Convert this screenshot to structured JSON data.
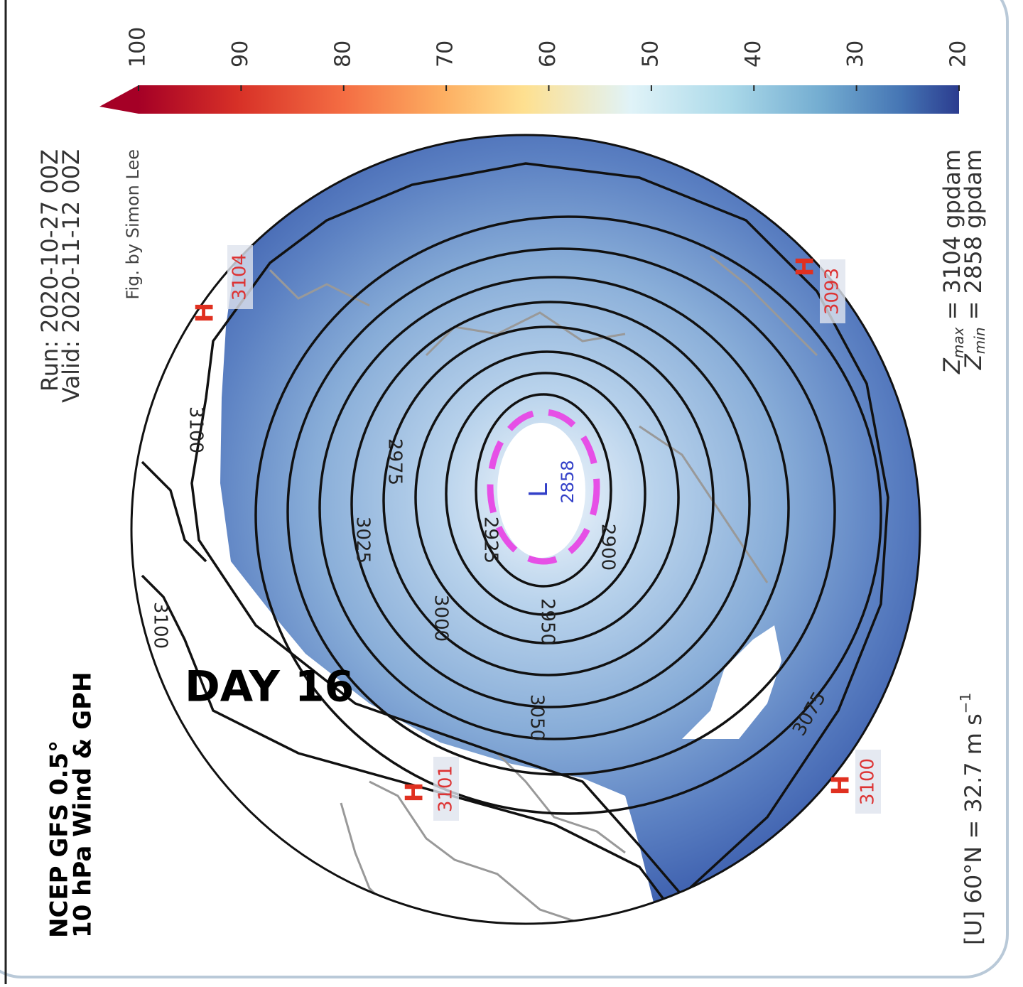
{
  "title": [
    "NCEP GFS 0.5°",
    "10 hPa Wind & GPH"
  ],
  "run": "Run: 2020-10-27 00Z",
  "valid": "Valid: 2020-11-12 00Z",
  "credit": "Fig. by Simon Lee",
  "colorbar": {
    "lim": [
      20,
      100
    ],
    "ticks": [
      100,
      90,
      80,
      70,
      60,
      50,
      40,
      30,
      20
    ]
  },
  "stats": [
    {
      "symbol": "Z",
      "sub": "max",
      "text": " = 3104 gpdam"
    },
    {
      "symbol": "Z",
      "sub": "min",
      "text": " = 2858 gpdam"
    }
  ],
  "zonal_wind": {
    "text": "[U] 60°N = 32.7 m s",
    "sup": "−1"
  },
  "day_label": "DAY 16",
  "highs": [
    {
      "marker": "H",
      "value": "3104"
    },
    {
      "marker": "H",
      "value": "3093"
    },
    {
      "marker": "H",
      "value": "3100"
    },
    {
      "marker": "H",
      "value": "3101"
    }
  ],
  "low": {
    "marker": "L",
    "value": "2858"
  },
  "contour_labels": [
    "3100",
    "3100",
    "2975",
    "3025",
    "2925",
    "2900",
    "3000",
    "2950",
    "3050",
    "3075"
  ]
}
